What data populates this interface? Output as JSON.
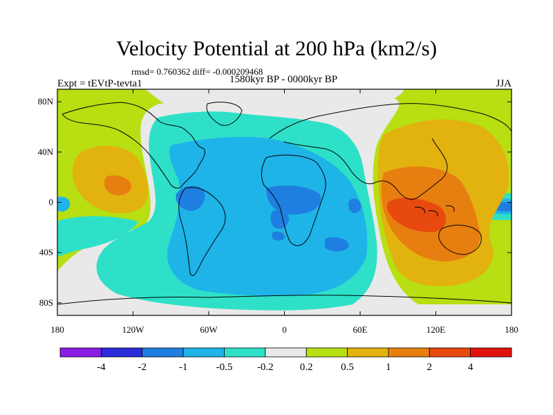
{
  "title": "Velocity Potential at 200 hPa (km2/s)",
  "stats": "rmsd= 0.760362 diff= -0.000209468",
  "period": "1580kyr BP - 0000kyr BP",
  "experiment": "Expt = tEVtP-tevta1",
  "season": "JJA",
  "map": {
    "projection": "cylindrical equidistant",
    "lon_range": [
      -180,
      180
    ],
    "lat_range": [
      -90,
      90
    ],
    "lat_ticks": [
      {
        "value": 80,
        "label": "80N"
      },
      {
        "value": 40,
        "label": "40N"
      },
      {
        "value": 0,
        "label": "0"
      },
      {
        "value": -40,
        "label": "40S"
      },
      {
        "value": -80,
        "label": "80S"
      }
    ],
    "lon_ticks": [
      {
        "value": -180,
        "label": "180"
      },
      {
        "value": -120,
        "label": "120W"
      },
      {
        "value": -60,
        "label": "60W"
      },
      {
        "value": 0,
        "label": "0"
      },
      {
        "value": 60,
        "label": "60E"
      },
      {
        "value": 120,
        "label": "120E"
      },
      {
        "value": 180,
        "label": "180"
      }
    ]
  },
  "colorbar": {
    "colors": [
      "#8a1ee6",
      "#2b2bd9",
      "#1f7fe0",
      "#1fb4e8",
      "#2ee0c8",
      "#e9e9e9",
      "#b7df12",
      "#e2b20f",
      "#e77e10",
      "#e7490f",
      "#e0120f"
    ],
    "labels": [
      "-4",
      "-2",
      "-1",
      "-0.5",
      "-0.2",
      "0.2",
      "0.5",
      "1",
      "2",
      "4"
    ]
  }
}
